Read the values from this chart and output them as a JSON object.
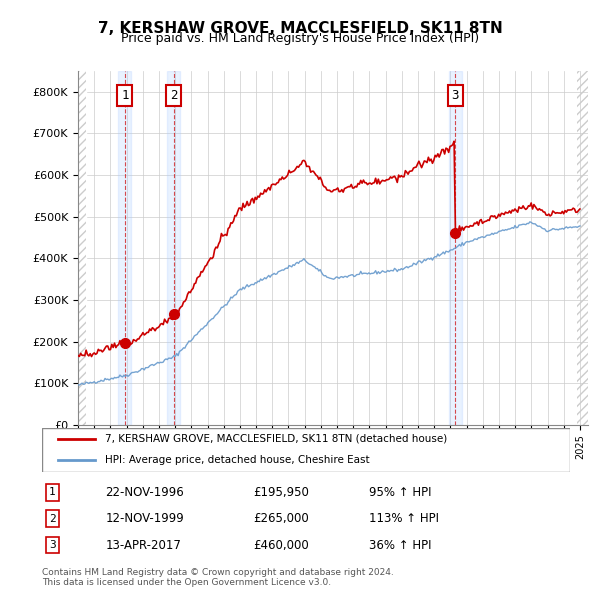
{
  "title": "7, KERSHAW GROVE, MACCLESFIELD, SK11 8TN",
  "subtitle": "Price paid vs. HM Land Registry's House Price Index (HPI)",
  "ylabel": "",
  "ylim": [
    0,
    850000
  ],
  "yticks": [
    0,
    100000,
    200000,
    300000,
    400000,
    500000,
    600000,
    700000,
    800000
  ],
  "ytick_labels": [
    "£0",
    "£100K",
    "£200K",
    "£300K",
    "£400K",
    "£500K",
    "£600K",
    "£700K",
    "£800K"
  ],
  "xlim_start": 1994.0,
  "xlim_end": 2025.5,
  "background_color": "#ffffff",
  "plot_bg_color": "#ffffff",
  "grid_color": "#cccccc",
  "hatch_color": "#dddddd",
  "sale_color": "#cc0000",
  "hpi_color": "#6699cc",
  "transaction_line_color": "#cc0000",
  "transactions": [
    {
      "num": 1,
      "date_x": 1996.9,
      "price": 195950,
      "label": "22-NOV-1996",
      "price_str": "£195,950",
      "pct": "95% ↑ HPI"
    },
    {
      "num": 2,
      "date_x": 1999.9,
      "price": 265000,
      "label": "12-NOV-1999",
      "price_str": "£265,000",
      "pct": "113% ↑ HPI"
    },
    {
      "num": 3,
      "date_x": 2017.3,
      "price": 460000,
      "label": "13-APR-2017",
      "price_str": "£460,000",
      "pct": "36% ↑ HPI"
    }
  ],
  "legend_line1": "7, KERSHAW GROVE, MACCLESFIELD, SK11 8TN (detached house)",
  "legend_line2": "HPI: Average price, detached house, Cheshire East",
  "footer1": "Contains HM Land Registry data © Crown copyright and database right 2024.",
  "footer2": "This data is licensed under the Open Government Licence v3.0."
}
